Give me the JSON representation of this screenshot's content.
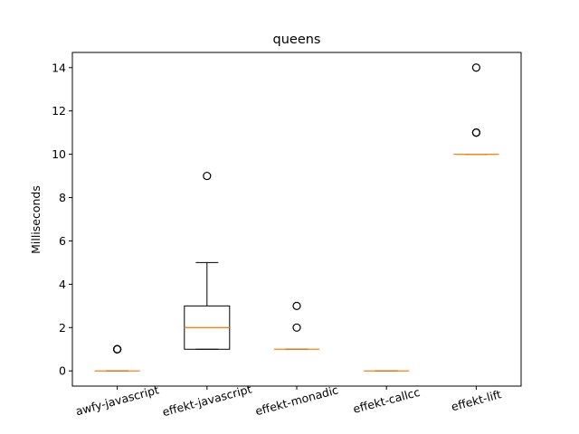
{
  "chart_data": {
    "type": "box",
    "title": "queens",
    "xlabel": "",
    "ylabel": "Milliseconds",
    "ylim": [
      -0.7,
      14.7
    ],
    "yticks": [
      0,
      2,
      4,
      6,
      8,
      10,
      12,
      14
    ],
    "grid": false,
    "median_color": "#ff7f0e",
    "box_color": "#000000",
    "categories": [
      "awfy-javascript",
      "effekt-javascript",
      "effekt-monadic",
      "effekt-callcc",
      "effekt-lift"
    ],
    "boxes": [
      {
        "name": "awfy-javascript",
        "whisker_low": 0,
        "q1": 0,
        "median": 0,
        "q3": 0,
        "whisker_high": 0,
        "fliers": [
          1,
          1,
          1
        ]
      },
      {
        "name": "effekt-javascript",
        "whisker_low": 1,
        "q1": 1,
        "median": 2,
        "q3": 3,
        "whisker_high": 5,
        "fliers": [
          9
        ]
      },
      {
        "name": "effekt-monadic",
        "whisker_low": 1,
        "q1": 1,
        "median": 1,
        "q3": 1,
        "whisker_high": 1,
        "fliers": [
          2,
          3
        ]
      },
      {
        "name": "effekt-callcc",
        "whisker_low": 0,
        "q1": 0,
        "median": 0,
        "q3": 0,
        "whisker_high": 0,
        "fliers": []
      },
      {
        "name": "effekt-lift",
        "whisker_low": 10,
        "q1": 10,
        "median": 10,
        "q3": 10,
        "whisker_high": 10,
        "fliers": [
          11,
          11,
          14
        ]
      }
    ]
  }
}
